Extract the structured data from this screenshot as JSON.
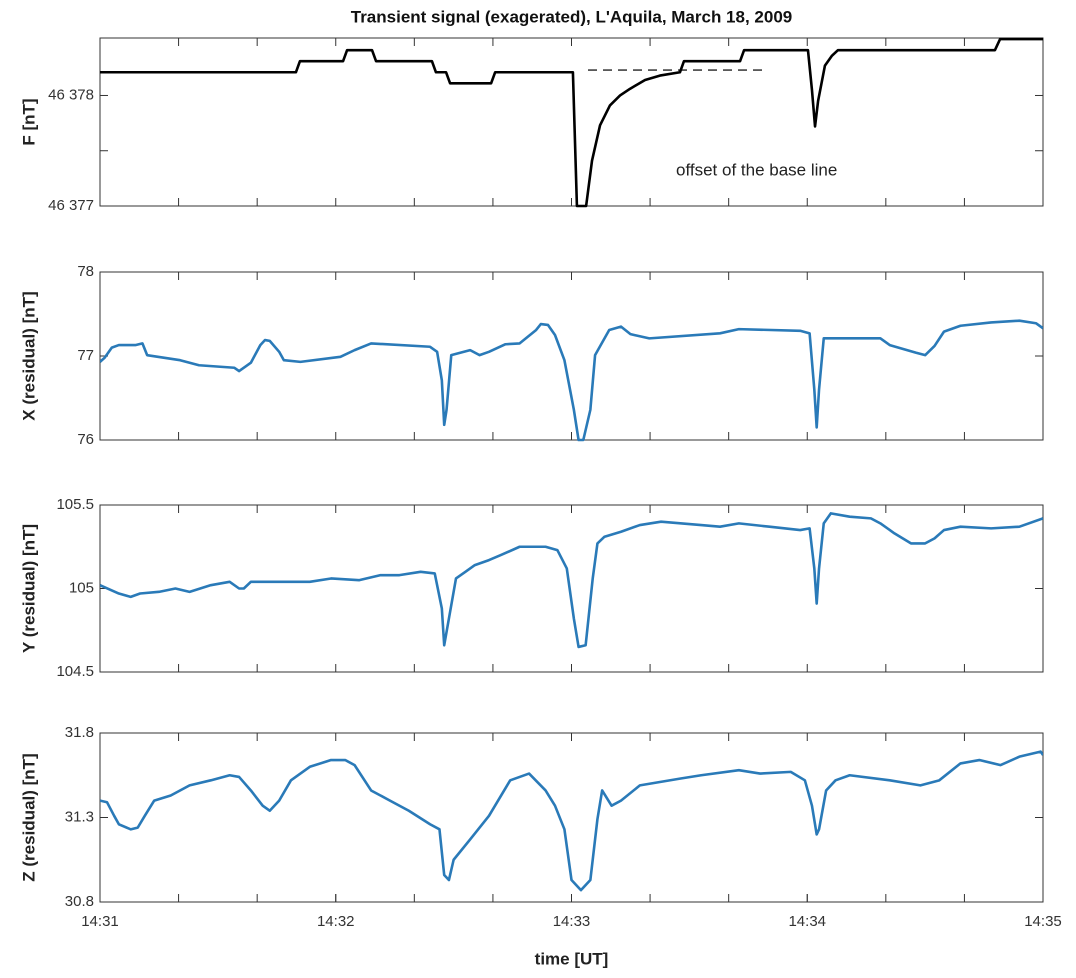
{
  "chart_data": [
    {
      "type": "line",
      "title": "Transient signal (exagerated), L'Aquila, March 18, 2009",
      "ylabel": "F [nT]",
      "color": "#000000",
      "annotation": "offset of the base line",
      "xlim": [
        871,
        875
      ],
      "xtick_marks": [
        871,
        871.3333,
        871.6667,
        872,
        872.3333,
        872.6667,
        873,
        873.3333,
        873.6667,
        874,
        874.3333,
        874.6667,
        875
      ],
      "ylim": [
        46377,
        46378.52
      ],
      "yticks": [
        {
          "value": 46377,
          "label": "46 377"
        },
        {
          "value": 46378,
          "label": "46 378"
        }
      ],
      "ytick_marks": [
        46377.5
      ],
      "baseline": {
        "x": [
          873.07,
          873.83
        ],
        "y": [
          46378.23,
          46378.23
        ]
      },
      "x": [
        871.0,
        871.831,
        871.848,
        872.031,
        872.048,
        872.154,
        872.171,
        872.408,
        872.425,
        872.468,
        872.485,
        872.659,
        872.676,
        873.006,
        873.023,
        873.062,
        873.087,
        873.121,
        873.163,
        873.206,
        873.248,
        873.312,
        873.375,
        873.46,
        873.477,
        873.715,
        873.732,
        874.003,
        874.02,
        874.033,
        874.046,
        874.075,
        874.105,
        874.13,
        874.796,
        874.818,
        875.0
      ],
      "values": [
        46378.21,
        46378.21,
        46378.31,
        46378.31,
        46378.41,
        46378.41,
        46378.31,
        46378.31,
        46378.21,
        46378.21,
        46378.11,
        46378.11,
        46378.21,
        46378.21,
        46377.0,
        46377.0,
        46377.41,
        46377.73,
        46377.91,
        46378.0,
        46378.06,
        46378.14,
        46378.18,
        46378.21,
        46378.31,
        46378.31,
        46378.41,
        46378.41,
        46378.05,
        46377.72,
        46377.95,
        46378.27,
        46378.36,
        46378.41,
        46378.41,
        46378.51,
        46378.51
      ]
    },
    {
      "type": "line",
      "ylabel": "X (residual) [nT]",
      "color": "#2a7ab8",
      "xlim": [
        871,
        875
      ],
      "xtick_marks": [
        871,
        871.3333,
        871.6667,
        872,
        872.3333,
        872.6667,
        873,
        873.3333,
        873.6667,
        874,
        874.3333,
        874.6667,
        875
      ],
      "ylim": [
        76,
        78
      ],
      "yticks": [
        76,
        77,
        78
      ],
      "x": [
        871.0,
        871.02,
        871.05,
        871.08,
        871.15,
        871.18,
        871.2,
        871.34,
        871.42,
        871.57,
        871.59,
        871.62,
        871.64,
        871.68,
        871.7,
        871.72,
        871.76,
        871.78,
        871.85,
        872.02,
        872.08,
        872.15,
        872.4,
        872.43,
        872.45,
        872.46,
        872.47,
        872.49,
        872.57,
        872.61,
        872.65,
        872.72,
        872.78,
        872.85,
        872.87,
        872.9,
        872.93,
        872.97,
        873.01,
        873.03,
        873.05,
        873.08,
        873.1,
        873.16,
        873.21,
        873.25,
        873.33,
        873.63,
        873.71,
        873.97,
        874.01,
        874.03,
        874.04,
        874.05,
        874.07,
        874.18,
        874.31,
        874.35,
        874.46,
        874.5,
        874.54,
        874.58,
        874.65,
        874.78,
        874.9,
        874.97,
        875.0
      ],
      "values": [
        76.93,
        76.98,
        77.1,
        77.13,
        77.13,
        77.15,
        77.01,
        76.95,
        76.89,
        76.86,
        76.82,
        76.88,
        76.92,
        77.13,
        77.19,
        77.18,
        77.05,
        76.95,
        76.93,
        76.99,
        77.07,
        77.15,
        77.11,
        77.05,
        76.71,
        76.18,
        76.36,
        77.01,
        77.07,
        77.01,
        77.05,
        77.14,
        77.15,
        77.31,
        77.38,
        77.37,
        77.25,
        76.95,
        76.36,
        76.0,
        76.0,
        76.36,
        77.01,
        77.31,
        77.35,
        77.26,
        77.21,
        77.27,
        77.32,
        77.3,
        77.27,
        76.6,
        76.15,
        76.6,
        77.21,
        77.21,
        77.21,
        77.13,
        77.04,
        77.01,
        77.12,
        77.29,
        77.36,
        77.4,
        77.42,
        77.39,
        77.33
      ]
    },
    {
      "type": "line",
      "ylabel": "Y (residual) [nT]",
      "color": "#2a7ab8",
      "xlim": [
        871,
        875
      ],
      "xtick_marks": [
        871,
        871.3333,
        871.6667,
        872,
        872.3333,
        872.6667,
        873,
        873.3333,
        873.6667,
        874,
        874.3333,
        874.6667,
        875
      ],
      "ylim": [
        104.5,
        105.5
      ],
      "yticks": [
        104.5,
        105,
        105.5
      ],
      "x": [
        871.0,
        871.08,
        871.13,
        871.17,
        871.25,
        871.32,
        871.38,
        871.47,
        871.55,
        871.59,
        871.61,
        871.64,
        871.89,
        871.98,
        872.1,
        872.19,
        872.27,
        872.36,
        872.42,
        872.45,
        872.46,
        872.48,
        872.51,
        872.55,
        872.59,
        872.65,
        872.7,
        872.78,
        872.82,
        872.89,
        872.94,
        872.98,
        873.01,
        873.03,
        873.06,
        873.09,
        873.11,
        873.14,
        873.21,
        873.29,
        873.38,
        873.55,
        873.63,
        873.71,
        873.84,
        873.97,
        874.01,
        874.03,
        874.04,
        874.05,
        874.07,
        874.1,
        874.18,
        874.27,
        874.31,
        874.37,
        874.44,
        874.5,
        874.54,
        874.58,
        874.65,
        874.78,
        874.9,
        875.0
      ],
      "values": [
        105.02,
        104.97,
        104.95,
        104.97,
        104.98,
        105.0,
        104.98,
        105.02,
        105.04,
        105.0,
        105.0,
        105.04,
        105.04,
        105.06,
        105.05,
        105.08,
        105.08,
        105.1,
        105.09,
        104.88,
        104.66,
        104.82,
        105.06,
        105.1,
        105.14,
        105.17,
        105.2,
        105.25,
        105.25,
        105.25,
        105.23,
        105.12,
        104.82,
        104.65,
        104.66,
        105.06,
        105.27,
        105.31,
        105.34,
        105.38,
        105.4,
        105.38,
        105.37,
        105.39,
        105.37,
        105.35,
        105.36,
        105.12,
        104.91,
        105.12,
        105.39,
        105.45,
        105.43,
        105.42,
        105.39,
        105.33,
        105.27,
        105.27,
        105.3,
        105.35,
        105.37,
        105.36,
        105.37,
        105.42
      ]
    },
    {
      "type": "line",
      "ylabel": "Z (residual) [nT]",
      "xlabel": "time [UT]",
      "color": "#2a7ab8",
      "xlim": [
        871,
        875
      ],
      "xtick_marks": [
        871,
        871.3333,
        871.6667,
        872,
        872.3333,
        872.6667,
        873,
        873.3333,
        873.6667,
        874,
        874.3333,
        874.6667,
        875
      ],
      "xticks": [
        {
          "value": 871,
          "label": "14:31"
        },
        {
          "value": 872,
          "label": "14:32"
        },
        {
          "value": 873,
          "label": "14:33"
        },
        {
          "value": 874,
          "label": "14:34"
        },
        {
          "value": 875,
          "label": "14:35"
        }
      ],
      "ylim": [
        30.8,
        31.8
      ],
      "yticks": [
        30.8,
        31.3,
        31.8
      ],
      "x": [
        871.0,
        871.03,
        871.06,
        871.08,
        871.13,
        871.16,
        871.19,
        871.23,
        871.3,
        871.38,
        871.47,
        871.55,
        871.59,
        871.64,
        871.69,
        871.72,
        871.76,
        871.81,
        871.89,
        871.98,
        872.04,
        872.08,
        872.15,
        872.23,
        872.31,
        872.4,
        872.44,
        872.46,
        872.48,
        872.5,
        872.57,
        872.65,
        872.74,
        872.82,
        872.89,
        872.93,
        872.97,
        873.0,
        873.04,
        873.08,
        873.11,
        873.13,
        873.17,
        873.21,
        873.29,
        873.46,
        873.55,
        873.71,
        873.8,
        873.93,
        873.99,
        874.02,
        874.04,
        874.05,
        874.08,
        874.12,
        874.18,
        874.35,
        874.48,
        874.56,
        874.65,
        874.73,
        874.82,
        874.9,
        874.99,
        875.0
      ],
      "values": [
        31.4,
        31.39,
        31.31,
        31.26,
        31.23,
        31.24,
        31.31,
        31.4,
        31.43,
        31.49,
        31.52,
        31.55,
        31.54,
        31.46,
        31.37,
        31.34,
        31.4,
        31.52,
        31.6,
        31.64,
        31.64,
        31.61,
        31.46,
        31.4,
        31.34,
        31.26,
        31.23,
        30.96,
        30.93,
        31.05,
        31.17,
        31.31,
        31.52,
        31.56,
        31.46,
        31.37,
        31.23,
        30.93,
        30.87,
        30.93,
        31.29,
        31.46,
        31.37,
        31.4,
        31.49,
        31.53,
        31.55,
        31.58,
        31.56,
        31.57,
        31.52,
        31.37,
        31.2,
        31.23,
        31.46,
        31.52,
        31.55,
        31.52,
        31.49,
        31.52,
        31.62,
        31.64,
        31.61,
        31.66,
        31.69,
        31.67
      ]
    }
  ]
}
